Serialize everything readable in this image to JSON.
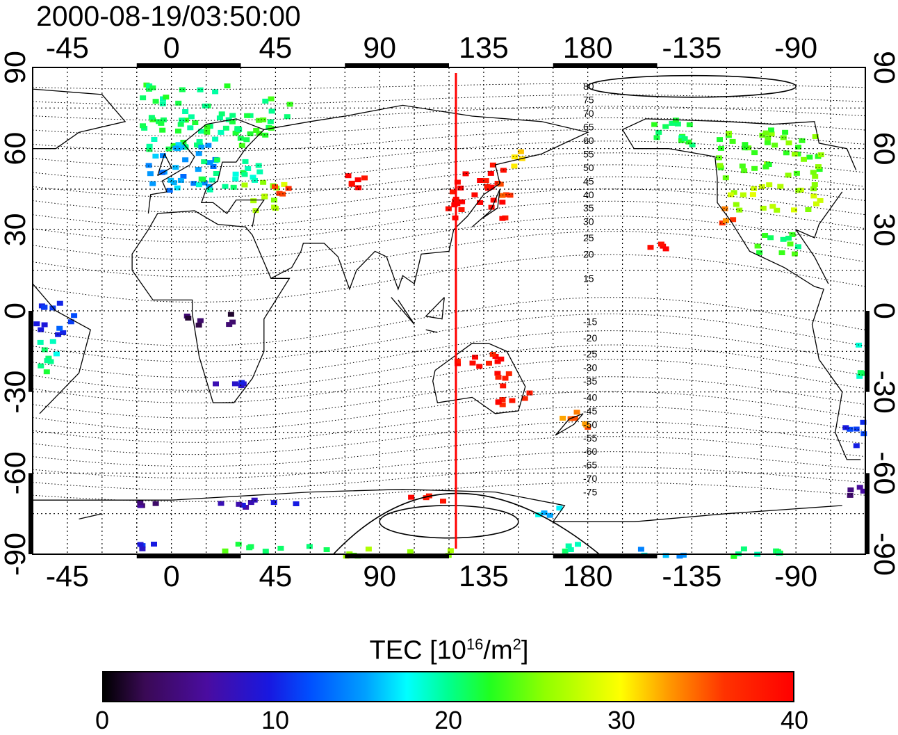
{
  "timestamp": "2000-08-19/03:50:00",
  "map": {
    "projection": "equirectangular",
    "lon_center": 120,
    "grid": "dotted",
    "top_lon_ticks": [
      {
        "lon": 0,
        "label": "0"
      },
      {
        "lon": 45,
        "label": "45"
      },
      {
        "lon": 90,
        "label": "90"
      },
      {
        "lon": 135,
        "label": "135"
      },
      {
        "lon": 180,
        "label": "180"
      },
      {
        "lon": 225,
        "label": "-135"
      },
      {
        "lon": 270,
        "label": "-90"
      },
      {
        "lon": 315,
        "label": "-45"
      }
    ],
    "bottom_lon_ticks": [
      {
        "lon": 0,
        "label": "0"
      },
      {
        "lon": 45,
        "label": "45"
      },
      {
        "lon": 90,
        "label": "90"
      },
      {
        "lon": 135,
        "label": "135"
      },
      {
        "lon": 180,
        "label": "180"
      },
      {
        "lon": 225,
        "label": "-135"
      },
      {
        "lon": 270,
        "label": "-90"
      },
      {
        "lon": 315,
        "label": "-45"
      }
    ],
    "lat_ticks": [
      {
        "lat": 90,
        "label": "90"
      },
      {
        "lat": 60,
        "label": "60"
      },
      {
        "lat": 30,
        "label": "30"
      },
      {
        "lat": 0,
        "label": "0"
      },
      {
        "lat": -30,
        "label": "-30"
      },
      {
        "lat": -60,
        "label": "-60"
      },
      {
        "lat": -90,
        "label": "-90"
      }
    ],
    "sun_meridian_lon": 123,
    "sun_meridian_color": "#ff0000",
    "magnetic_latitude_labels": [
      {
        "label": "80",
        "lat": 83
      },
      {
        "label": "75",
        "lat": 78
      },
      {
        "label": "70",
        "lat": 73
      },
      {
        "label": "65",
        "lat": 68
      },
      {
        "label": "60",
        "lat": 63
      },
      {
        "label": "55",
        "lat": 58
      },
      {
        "label": "50",
        "lat": 53
      },
      {
        "label": "45",
        "lat": 48
      },
      {
        "label": "40",
        "lat": 43
      },
      {
        "label": "35",
        "lat": 38
      },
      {
        "label": "30",
        "lat": 33
      },
      {
        "label": "25",
        "lat": 27
      },
      {
        "label": "20",
        "lat": 21
      },
      {
        "label": "15",
        "lat": 12
      },
      {
        "label": "-15",
        "lat": -4
      },
      {
        "label": "-20",
        "lat": -10
      },
      {
        "label": "-25",
        "lat": -16
      },
      {
        "label": "-30",
        "lat": -21
      },
      {
        "label": "-35",
        "lat": -26
      },
      {
        "label": "-40",
        "lat": -32
      },
      {
        "label": "-45",
        "lat": -37
      },
      {
        "label": "-50",
        "lat": -42
      },
      {
        "label": "-55",
        "lat": -47
      },
      {
        "label": "-60",
        "lat": -52
      },
      {
        "label": "-65",
        "lat": -57
      },
      {
        "label": "-70",
        "lat": -62
      },
      {
        "label": "-75",
        "lat": -67
      }
    ],
    "tec_regions": [
      {
        "lon": -14,
        "lat": 60,
        "dlon": 38,
        "dlat": 26,
        "tec": 21
      },
      {
        "lon": -12,
        "lat": 45,
        "dlon": 30,
        "dlat": 18,
        "tec": 15
      },
      {
        "lon": 8,
        "lat": 45,
        "dlon": 30,
        "dlat": 12,
        "tec": 20
      },
      {
        "lon": 25,
        "lat": 62,
        "dlon": 25,
        "dlat": 18,
        "tec": 22
      },
      {
        "lon": 30,
        "lat": 38,
        "dlon": 18,
        "dlat": 12,
        "tec": 27
      },
      {
        "lon": 42,
        "lat": 42,
        "dlon": 8,
        "dlat": 6,
        "tec": 35
      },
      {
        "lon": 75,
        "lat": 45,
        "dlon": 18,
        "dlat": 6,
        "tec": 40
      },
      {
        "lon": 118,
        "lat": 35,
        "dlon": 25,
        "dlat": 20,
        "tec": 40
      },
      {
        "lon": 140,
        "lat": 43,
        "dlon": 10,
        "dlat": 8,
        "tec": 36
      },
      {
        "lon": 143,
        "lat": 54,
        "dlon": 8,
        "dlat": 6,
        "tec": 32
      },
      {
        "lon": 120,
        "lat": -25,
        "dlon": 25,
        "dlat": 10,
        "tec": 39
      },
      {
        "lon": 140,
        "lat": -35,
        "dlon": 15,
        "dlat": 10,
        "tec": 38
      },
      {
        "lon": 167,
        "lat": -43,
        "dlon": 12,
        "dlat": 10,
        "tec": 34
      },
      {
        "lon": 205,
        "lat": 20,
        "dlon": 8,
        "dlat": 6,
        "tec": 40
      },
      {
        "lon": 205,
        "lat": 62,
        "dlon": 25,
        "dlat": 10,
        "tec": 21
      },
      {
        "lon": 235,
        "lat": 50,
        "dlon": 45,
        "dlat": 18,
        "tec": 24
      },
      {
        "lon": 240,
        "lat": 38,
        "dlon": 40,
        "dlat": 10,
        "tec": 27
      },
      {
        "lon": 236,
        "lat": 33,
        "dlon": 8,
        "dlat": 6,
        "tec": 35
      },
      {
        "lon": 250,
        "lat": 20,
        "dlon": 20,
        "dlat": 10,
        "tec": 22
      },
      {
        "lon": 300,
        "lat": -8,
        "dlon": 20,
        "dlat": 12,
        "tec": 11
      },
      {
        "lon": 295,
        "lat": -25,
        "dlon": 15,
        "dlat": 15,
        "tec": 20
      },
      {
        "lon": 290,
        "lat": -50,
        "dlon": 10,
        "dlat": 10,
        "tec": 10
      },
      {
        "lon": 5,
        "lat": -5,
        "dlon": 25,
        "dlat": 5,
        "tec": 3
      },
      {
        "lon": 15,
        "lat": -30,
        "dlon": 15,
        "dlat": 6,
        "tec": 8
      },
      {
        "lon": -15,
        "lat": -88,
        "dlon": 10,
        "dlat": 3,
        "tec": 10
      },
      {
        "lon": 20,
        "lat": -88,
        "dlon": 50,
        "dlat": 3,
        "tec": 22
      },
      {
        "lon": 70,
        "lat": -90,
        "dlon": 50,
        "dlat": 3,
        "tec": 25
      },
      {
        "lon": 155,
        "lat": -88,
        "dlon": 20,
        "dlat": 3,
        "tec": 21
      },
      {
        "lon": 195,
        "lat": -90,
        "dlon": 30,
        "dlat": 3,
        "tec": 16
      },
      {
        "lon": 230,
        "lat": -90,
        "dlon": 45,
        "dlat": 3,
        "tec": 21
      },
      {
        "lon": -15,
        "lat": -72,
        "dlon": 8,
        "dlat": 2,
        "tec": 5
      },
      {
        "lon": 20,
        "lat": -72,
        "dlon": 35,
        "dlat": 4,
        "tec": 8
      },
      {
        "lon": 100,
        "lat": -70,
        "dlon": 20,
        "dlat": 4,
        "tec": 39
      },
      {
        "lon": 150,
        "lat": -75,
        "dlon": 20,
        "dlat": 3,
        "tec": 16
      },
      {
        "lon": 290,
        "lat": -68,
        "dlon": 15,
        "dlat": 4,
        "tec": 5
      }
    ],
    "ellipses": [
      {
        "lon": 120,
        "lat": -78,
        "rlon": 30,
        "rlat": 6
      },
      {
        "lon": 225,
        "lat": 83,
        "rlon": 45,
        "rlat": 4
      }
    ]
  },
  "colorbar": {
    "title": "TEC  [10",
    "exp1": "16",
    "mid": "/m",
    "exp2": "2",
    "close": "]",
    "min": 0,
    "max": 40,
    "ticks": [
      "0",
      "10",
      "20",
      "30",
      "40"
    ]
  }
}
